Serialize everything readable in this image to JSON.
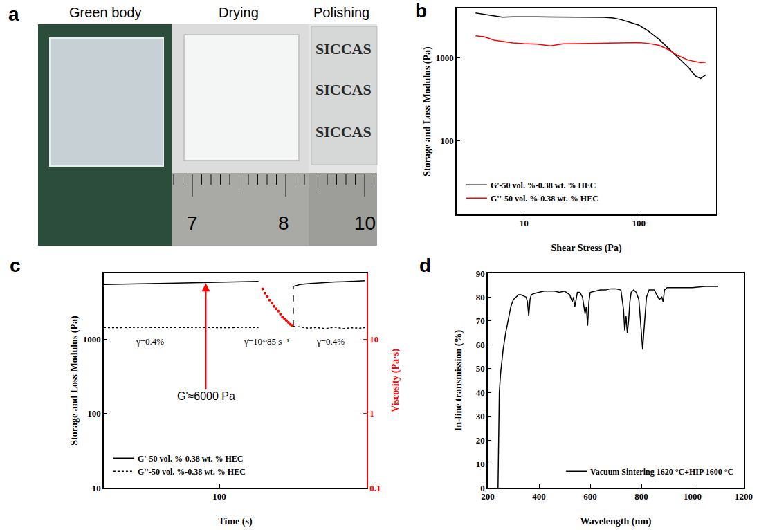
{
  "photo_panel": {
    "letter": "a",
    "captions": [
      "Green body",
      "Drying",
      "Polishing"
    ],
    "overlay_text": [
      "SICCAS",
      "SICCAS",
      "SICCAS"
    ],
    "ruler_labels": [
      "7",
      "8",
      "10"
    ]
  },
  "chart_data": [
    {
      "panel": "b",
      "type": "line",
      "xlabel": "Shear Stress (Pa)",
      "ylabel": "Storage and Loss Modulus (Pa)",
      "log": true,
      "grid": false,
      "legend": "lower left",
      "xlim": [
        2.6,
        470
      ],
      "xticks": [
        10,
        100
      ],
      "ylim": [
        13,
        3900
      ],
      "yticks": [
        100,
        1000
      ],
      "x": [
        3.8,
        4.5,
        5.5,
        6.5,
        8,
        10,
        13,
        17,
        22,
        30,
        40,
        50,
        60,
        70,
        80,
        100,
        120,
        150,
        180,
        220,
        270,
        310,
        345,
        384
      ],
      "series": [
        {
          "name": "G'-50 vol. %-0.38 wt. % HEC",
          "color": "#000000",
          "line_style": "solid",
          "values": [
            3430,
            3300,
            3150,
            3050,
            3080,
            3100,
            3080,
            3070,
            3060,
            3060,
            3050,
            3040,
            2980,
            2850,
            2700,
            2450,
            2100,
            1650,
            1300,
            1000,
            760,
            600,
            560,
            620
          ]
        },
        {
          "name": "G''-50 vol. %-0.38 wt. % HEC",
          "color": "#ff0000",
          "line_style": "solid",
          "values": [
            1820,
            1780,
            1620,
            1560,
            1500,
            1470,
            1450,
            1380,
            1460,
            1470,
            1480,
            1490,
            1500,
            1500,
            1510,
            1510,
            1480,
            1400,
            1250,
            1050,
            930,
            890,
            870,
            880
          ]
        }
      ]
    },
    {
      "panel": "c",
      "type": "line",
      "xlabel": "Time (s)",
      "ylabel": "Storage and Loss Modulus (Pa)",
      "y2label": "Viscosity (Pa·s)",
      "log": true,
      "grid": false,
      "legend": "lower left",
      "xlim": [
        37,
        355
      ],
      "xticks": [
        100
      ],
      "ylim": [
        10,
        7800
      ],
      "yticks": [
        10,
        100,
        1000
      ],
      "y2lim": [
        0.1,
        78
      ],
      "y2ticks": [
        0.1,
        1,
        10
      ],
      "series": [
        {
          "name": "G'-50 vol. %-0.38 wt. % HEC",
          "color": "#000000",
          "line_style": "solid",
          "x": [
            37,
            42,
            48,
            55,
            63,
            72,
            82,
            94,
            107,
            122,
            140,
            165,
            189,
            200,
            215,
            230,
            250,
            270,
            290,
            310,
            335,
            350
          ],
          "values": [
            5500,
            5550,
            5600,
            5650,
            5700,
            5750,
            5850,
            5900,
            5950,
            6000,
            6050,
            null,
            5200,
            5500,
            5650,
            5750,
            5850,
            5950,
            6000,
            6100,
            6150,
            6200
          ]
        },
        {
          "name": "G''-50 vol. %-0.38 wt. % HEC",
          "color": "#000000",
          "line_style": "dotted",
          "x": [
            37,
            42,
            48,
            55,
            63,
            72,
            82,
            94,
            107,
            122,
            140,
            165,
            189,
            200,
            215,
            230,
            250,
            270,
            290,
            310,
            335,
            350
          ],
          "values": [
            1450,
            1440,
            1460,
            1450,
            1440,
            1450,
            1460,
            1450,
            1440,
            1460,
            1450,
            null,
            1500,
            1480,
            1420,
            1450,
            1400,
            1470,
            1400,
            1440,
            1420,
            1450
          ]
        },
        {
          "type": "scatter",
          "marker": "circle",
          "color": "#ff0000",
          "axis": "y2",
          "x": [
            145,
            148,
            151,
            154,
            157,
            160,
            163,
            166,
            169,
            172,
            175,
            178,
            181,
            184,
            187
          ],
          "values": [
            48,
            42,
            38,
            34,
            31,
            28,
            26,
            24,
            22,
            20,
            19,
            18,
            17,
            16,
            15.5
          ]
        }
      ],
      "annotations": [
        {
          "text": "γ=0.4%",
          "x": 55,
          "y": 950
        },
        {
          "text": "γ̇=10~85 s⁻¹",
          "x": 150,
          "y": 950
        },
        {
          "text": "γ=0.4%",
          "x": 260,
          "y": 950
        }
      ],
      "callout": {
        "text": "G'≈6000 Pa",
        "x": 89,
        "y": 6000,
        "color": "#ff0000"
      }
    },
    {
      "panel": "d",
      "type": "line",
      "xlabel": "Wavelength (nm)",
      "ylabel": "In-line transmission (%)",
      "grid": false,
      "legend": "lower right",
      "xlim": [
        200,
        1200
      ],
      "xticks": [
        200,
        400,
        600,
        800,
        1000,
        1200
      ],
      "ylim": [
        0,
        90
      ],
      "yticks": [
        0,
        10,
        20,
        30,
        40,
        50,
        60,
        70,
        80,
        90
      ],
      "x": [
        240,
        245,
        250,
        255,
        260,
        270,
        280,
        290,
        300,
        310,
        320,
        330,
        340,
        350,
        355,
        360,
        365,
        370,
        380,
        400,
        420,
        440,
        460,
        480,
        500,
        520,
        530,
        535,
        540,
        545,
        550,
        560,
        570,
        580,
        585,
        590,
        595,
        600,
        620,
        640,
        660,
        680,
        700,
        720,
        725,
        730,
        735,
        740,
        745,
        750,
        755,
        760,
        770,
        780,
        790,
        795,
        800,
        805,
        810,
        815,
        820,
        830,
        850,
        870,
        880,
        885,
        890,
        900,
        950,
        1000,
        1050,
        1100
      ],
      "series": [
        {
          "name": "Vacuum Sintering 1620 °C+HIP 1600 °C",
          "color": "#000000",
          "line_style": "solid",
          "values": [
            0,
            40,
            48,
            53,
            58,
            65,
            71,
            76,
            79,
            80,
            81,
            81,
            80.5,
            80,
            78,
            72,
            79,
            81,
            81.5,
            82,
            82.5,
            82.5,
            82.5,
            82,
            82.5,
            81,
            78,
            80,
            76,
            79,
            82,
            82,
            80,
            73,
            76,
            68,
            78,
            82,
            82.5,
            83,
            83,
            83.5,
            83.5,
            83,
            79,
            75,
            66,
            72,
            65,
            70,
            78,
            82,
            83,
            82,
            79,
            72,
            66,
            58,
            66,
            74,
            80,
            83,
            83,
            79,
            80,
            78,
            83,
            84,
            84,
            84,
            84.5,
            84.5
          ]
        }
      ]
    }
  ]
}
